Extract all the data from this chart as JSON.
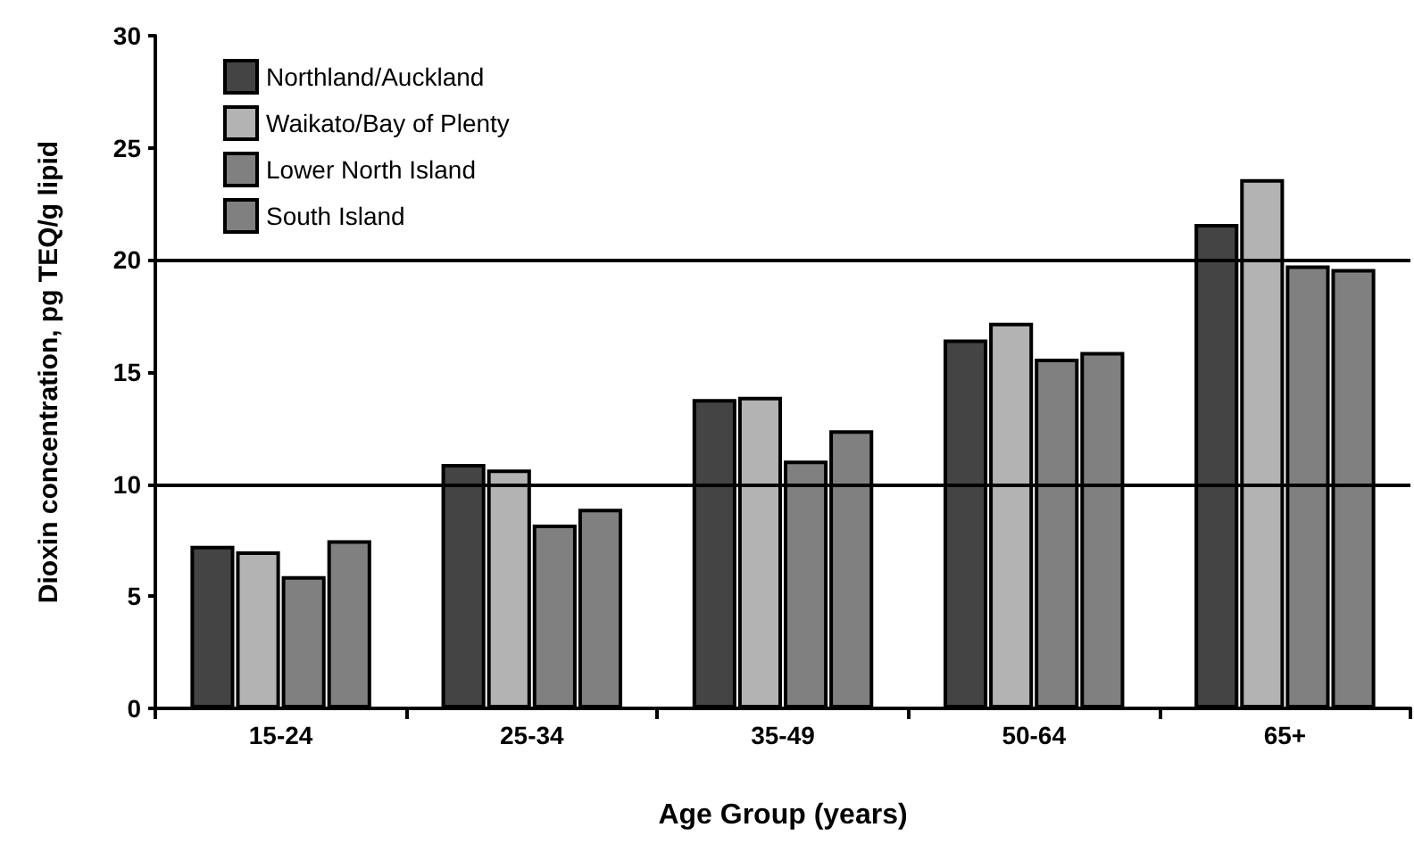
{
  "chart_data": {
    "type": "bar",
    "xlabel": "Age Group (years)",
    "ylabel": "Dioxin concentration, pg TEQ/g lipid",
    "categories": [
      "15-24",
      "25-34",
      "35-49",
      "50-64",
      "65+"
    ],
    "series": [
      {
        "name": "Northland/Auckland",
        "color": "#444444",
        "values": [
          7.25,
          10.9,
          13.8,
          16.45,
          21.6
        ]
      },
      {
        "name": "Waikato/Bay of Plenty",
        "color": "#b3b3b3",
        "values": [
          7.0,
          10.65,
          13.9,
          17.2,
          23.6
        ]
      },
      {
        "name": "Lower North Island",
        "color": "#808080",
        "values": [
          5.9,
          8.2,
          11.05,
          15.6,
          19.75
        ]
      },
      {
        "name": "South Island",
        "color": "#808080",
        "values": [
          7.5,
          8.9,
          12.4,
          15.9,
          19.6
        ]
      }
    ],
    "ylim": [
      0,
      30
    ],
    "yticks": [
      0,
      5,
      10,
      15,
      20,
      25,
      30
    ],
    "ref_lines": [
      {
        "axis": "y",
        "value": 10,
        "color": "#000000"
      },
      {
        "axis": "y",
        "value": 20,
        "color": "#000000"
      }
    ],
    "grid": false,
    "legend": "top left"
  }
}
